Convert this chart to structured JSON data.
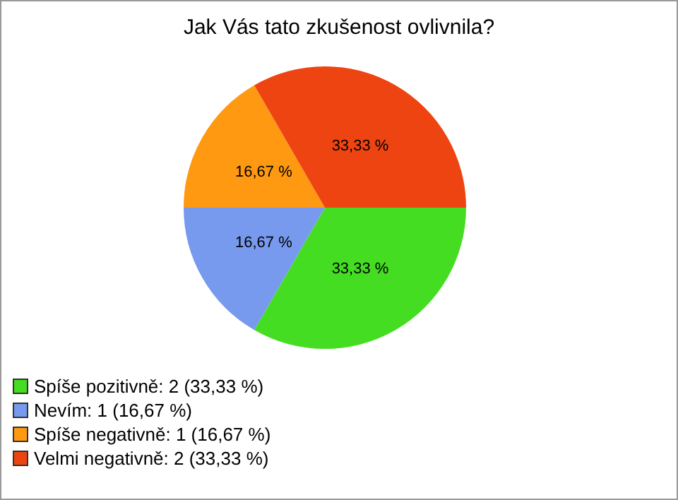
{
  "chart_data": {
    "type": "pie",
    "title": "Jak Vás tato zkušenost ovlivnila?",
    "categories": [
      "Spíše pozitivně: 2 (33,33 %)",
      "Nevím: 1 (16,67 %)",
      "Spíše negativně: 1 (16,67 %)",
      "Velmi negativně: 2 (33,33 %)"
    ],
    "values": [
      33.33,
      16.67,
      16.67,
      33.33
    ],
    "colors": [
      "#44dd22",
      "#7799ee",
      "#ff9911",
      "#ee4411"
    ],
    "value_labels": [
      "33,33 %",
      "16,67 %",
      "16,67 %",
      "33,33 %"
    ],
    "legend": "bottom left"
  }
}
